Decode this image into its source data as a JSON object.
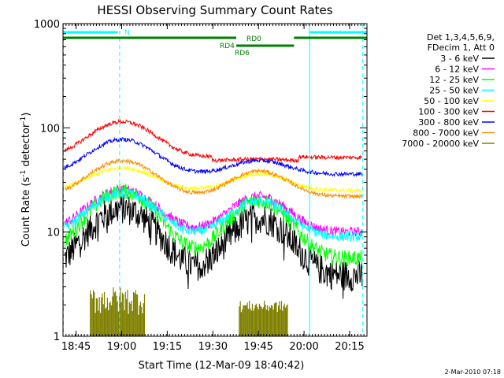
{
  "chart_data": {
    "type": "line",
    "title": "HESSI Observing Summary Count Rates",
    "xlabel": "Start Time (12-Mar-09 18:40:42)",
    "ylabel_main": "Count Rate (s",
    "ylabel_sup1": "-1",
    "ylabel_mid": " detector",
    "ylabel_sup2": "-1",
    "ylabel_end": ")",
    "y_scale": "log",
    "ylim": [
      1,
      1000
    ],
    "xlim_minutes": [
      0,
      100
    ],
    "x_ticks": [
      {
        "label": "18:45",
        "minute": 4.3
      },
      {
        "label": "19:00",
        "minute": 19.3
      },
      {
        "label": "19:15",
        "minute": 34.3
      },
      {
        "label": "19:30",
        "minute": 49.3
      },
      {
        "label": "19:45",
        "minute": 64.3
      },
      {
        "label": "20:00",
        "minute": 79.3
      },
      {
        "label": "20:15",
        "minute": 94.3
      }
    ],
    "y_ticks": [
      {
        "label": "1",
        "value": 1
      },
      {
        "label": "10",
        "value": 10
      },
      {
        "label": "100",
        "value": 100
      },
      {
        "label": "1000",
        "value": 1000
      }
    ],
    "legend_header": [
      "Det 1,3,4,5,6,9,",
      "FDecim 1, Att 0"
    ],
    "legend_position": "right",
    "series": [
      {
        "name": "3 - 6 keV",
        "color": "#000000",
        "base": 3.8,
        "amp1": 3.4,
        "amp2": 2.6,
        "noise": 0.16
      },
      {
        "name": "6 - 12 keV",
        "color": "#ff00ff",
        "base": 10.0,
        "amp1": 1.55,
        "amp2": 1.2,
        "noise": 0.05
      },
      {
        "name": "12 - 25 keV",
        "color": "#00ff00",
        "base": 5.6,
        "amp1": 3.4,
        "amp2": 2.6,
        "noise": 0.08
      },
      {
        "name": "25 - 50 keV",
        "color": "#00ffff",
        "base": 9.0,
        "amp1": 1.65,
        "amp2": 1.2,
        "noise": 0.05
      },
      {
        "name": "50 - 100 keV",
        "color": "#ffff00",
        "base": 25,
        "amp1": 0.65,
        "amp2": 0.45,
        "noise": 0.02
      },
      {
        "name": "100 - 300 keV",
        "color": "#ff0000",
        "base": 52,
        "amp1": 1.2,
        "amp2": 0.05,
        "noise": 0.02
      },
      {
        "name": "300 - 800 keV",
        "color": "#0000ff",
        "base": 36,
        "amp1": 1.15,
        "amp2": 0.35,
        "noise": 0.02
      },
      {
        "name": "800 - 7000 keV",
        "color": "#ff8c00",
        "base": 22,
        "amp1": 1.2,
        "amp2": 0.75,
        "noise": 0.02
      },
      {
        "name": "7000 - 20000 keV",
        "color": "#808000",
        "base": 1,
        "amp1": 0,
        "amp2": 0,
        "noise": 0
      }
    ],
    "bursts_7000_20000": [
      {
        "from": 9.0,
        "to": 27.0,
        "low": 1.6,
        "high": 3.0
      },
      {
        "from": 58.0,
        "to": 74.0,
        "low": 1.7,
        "high": 2.2
      }
    ],
    "state_bars": {
      "cyan_segments": [
        [
          0,
          18
        ],
        [
          81,
          100
        ]
      ],
      "green_segments": [
        [
          0,
          77
        ],
        [
          77,
          100
        ]
      ],
      "green_dip": [
        57,
        76
      ],
      "labels": {
        "N": "N",
        "RD0": "RD0",
        "RD4": "RD4",
        "RD6": "RD6"
      }
    },
    "vertical_lines": [
      {
        "minute": 0.0,
        "style": "dashed"
      },
      {
        "minute": 18.5,
        "style": "dashed"
      },
      {
        "minute": 81.0,
        "style": "solid"
      },
      {
        "minute": 98.5,
        "style": "dashed"
      }
    ],
    "colors": {
      "cyan": "#00ffff",
      "green": "#007f00",
      "frame": "#000000"
    }
  },
  "footer": {
    "date": "2-Mar-2010 07:18"
  }
}
